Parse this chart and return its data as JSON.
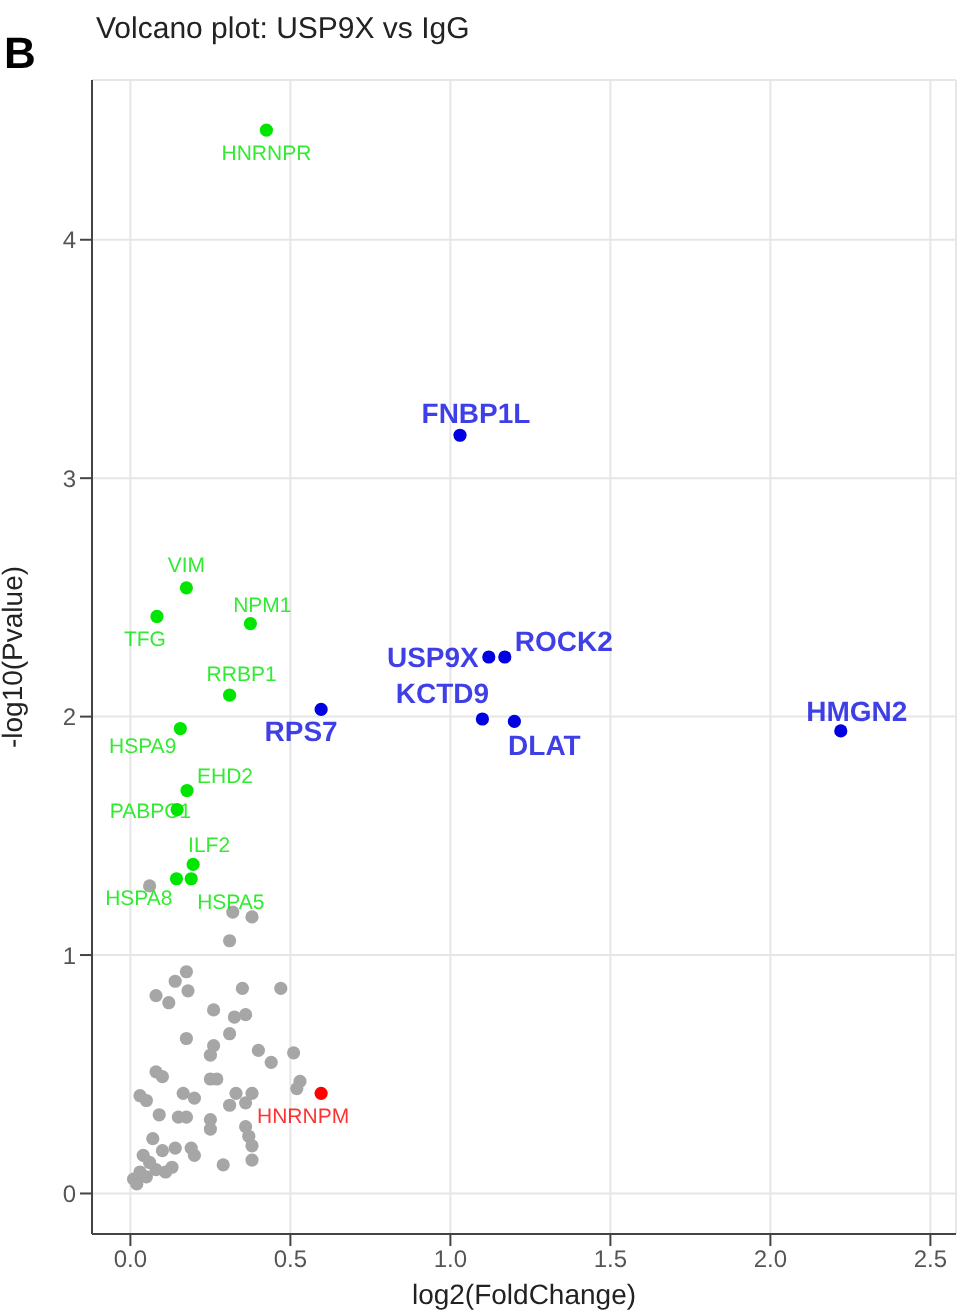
{
  "chart_data": {
    "type": "scatter",
    "title": "Volcano plot: USP9X vs IgG",
    "xlabel": "log2(FoldChange)",
    "ylabel": "-log10(Pvalue)",
    "annotations": [
      "B"
    ],
    "xlim": [
      -0.12,
      2.58
    ],
    "xticks": [
      {
        "value": 0,
        "label": "0.0"
      },
      0.5,
      {
        "value": 1,
        "label": "1.0"
      },
      1.5,
      {
        "value": 2,
        "label": "2.0"
      },
      2.5
    ],
    "ylim": [
      -0.17,
      4.67
    ],
    "yticks": [
      0,
      1,
      2,
      3,
      4
    ],
    "grid": true,
    "marker": "circle",
    "series": [
      {
        "color": "#a6a6a6",
        "x": [
          0.06,
          0.32,
          0.38,
          0.31,
          0.175,
          0.14,
          0.18,
          0.08,
          0.12,
          0.35,
          0.47,
          0.26,
          0.325,
          0.36,
          0.175,
          0.31,
          0.26,
          0.25,
          0.4,
          0.44,
          0.51,
          0.08,
          0.1,
          0.25,
          0.27,
          0.53,
          0.52,
          0.03,
          0.05,
          0.165,
          0.2,
          0.33,
          0.38,
          0.31,
          0.36,
          0.09,
          0.15,
          0.175,
          0.25,
          0.25,
          0.36,
          0.37,
          0.07,
          0.1,
          0.14,
          0.19,
          0.2,
          0.38,
          0.04,
          0.06,
          0.11,
          0.29,
          0.38,
          0.03,
          0.01,
          0.05,
          0.02,
          0.08,
          0.13
        ],
        "values": [
          1.29,
          1.18,
          1.16,
          1.06,
          0.93,
          0.89,
          0.85,
          0.83,
          0.8,
          0.86,
          0.86,
          0.77,
          0.74,
          0.75,
          0.65,
          0.67,
          0.62,
          0.58,
          0.6,
          0.55,
          0.59,
          0.51,
          0.49,
          0.48,
          0.48,
          0.47,
          0.44,
          0.41,
          0.39,
          0.42,
          0.4,
          0.42,
          0.42,
          0.37,
          0.38,
          0.33,
          0.32,
          0.32,
          0.31,
          0.27,
          0.28,
          0.24,
          0.23,
          0.18,
          0.19,
          0.19,
          0.16,
          0.2,
          0.16,
          0.13,
          0.09,
          0.12,
          0.14,
          0.09,
          0.06,
          0.07,
          0.04,
          0.1,
          0.11
        ]
      },
      {
        "color": "#00e600",
        "x": [
          0.425,
          0.175,
          0.083,
          0.375,
          0.31,
          0.156,
          0.177,
          0.146,
          0.196,
          0.144,
          0.19
        ],
        "values": [
          4.46,
          2.54,
          2.42,
          2.39,
          2.09,
          1.95,
          1.69,
          1.61,
          1.38,
          1.32,
          1.32
        ],
        "value_labels": [
          "HNRNPR",
          "VIM",
          "TFG",
          "NPM1",
          "RRBP1",
          "HSPA9",
          "EHD2",
          "PABPC1",
          "ILF2",
          "HSPA8",
          "HSPA5"
        ]
      },
      {
        "color": "#0000e0",
        "x": [
          1.03,
          1.12,
          1.17,
          1.1,
          1.2,
          2.22,
          0.596
        ],
        "values": [
          3.18,
          2.25,
          2.25,
          1.99,
          1.98,
          1.94,
          2.03
        ],
        "value_labels": [
          "FNBP1L",
          "USP9X",
          "ROCK2",
          "KCTD9",
          "DLAT",
          "HMGN2",
          "RPS7"
        ]
      },
      {
        "color": "#ff0000",
        "x": [
          0.596
        ],
        "values": [
          0.42
        ],
        "value_labels": [
          "HNRNPM"
        ]
      }
    ]
  }
}
